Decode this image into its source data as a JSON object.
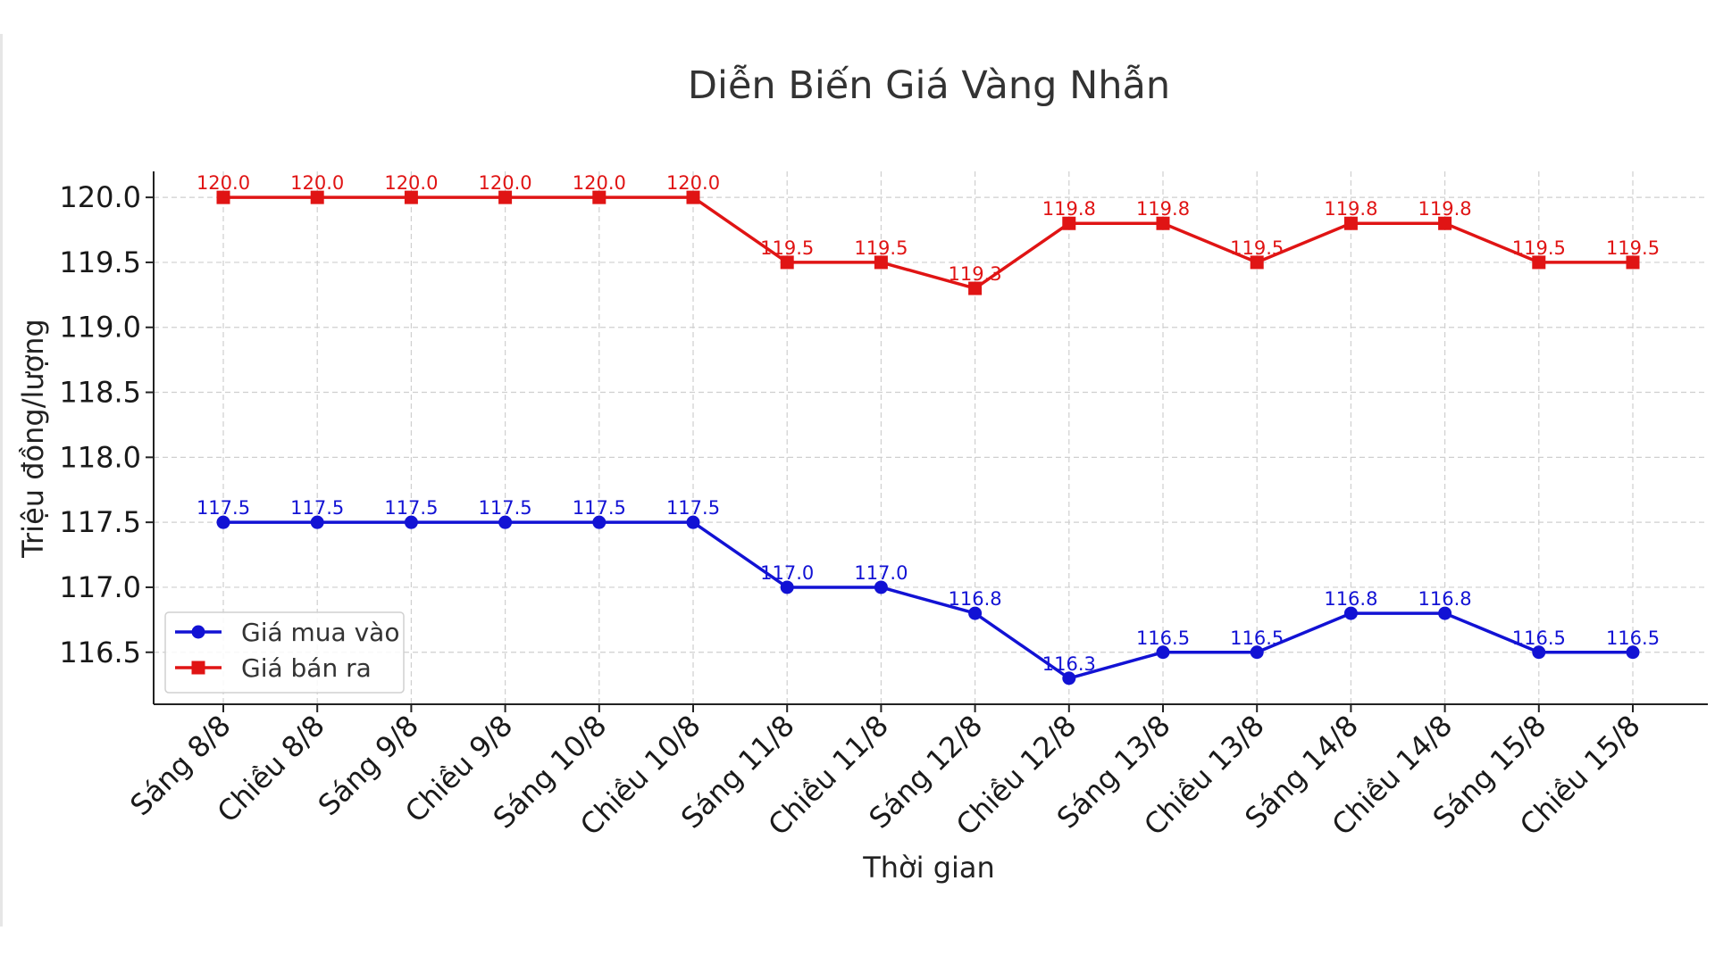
{
  "chart_data": {
    "type": "line",
    "title": "Diễn Biến Giá Vàng Nhẫn",
    "xlabel": "Thời gian",
    "ylabel": "Triệu đồng/lượng",
    "categories": [
      "Sáng 8/8",
      "Chiều 8/8",
      "Sáng 9/8",
      "Chiều 9/8",
      "Sáng 10/8",
      "Chiều 10/8",
      "Sáng 11/8",
      "Chiều 11/8",
      "Sáng 12/8",
      "Chiều 12/8",
      "Sáng 13/8",
      "Chiều 13/8",
      "Sáng 14/8",
      "Chiều 14/8",
      "Sáng 15/8",
      "Chiều 15/8"
    ],
    "series": [
      {
        "name": "Giá mua vào",
        "color": "#1212d4",
        "marker": "circle",
        "values": [
          117.5,
          117.5,
          117.5,
          117.5,
          117.5,
          117.5,
          117.0,
          117.0,
          116.8,
          116.3,
          116.5,
          116.5,
          116.8,
          116.8,
          116.5,
          116.5
        ]
      },
      {
        "name": "Giá bán ra",
        "color": "#e01414",
        "marker": "square",
        "values": [
          120.0,
          120.0,
          120.0,
          120.0,
          120.0,
          120.0,
          119.5,
          119.5,
          119.3,
          119.8,
          119.8,
          119.5,
          119.8,
          119.8,
          119.5,
          119.5
        ]
      }
    ],
    "yticks": [
      "116.5",
      "117.0",
      "117.5",
      "118.0",
      "118.5",
      "119.0",
      "119.5",
      "120.0"
    ],
    "ylim": [
      116.1,
      120.2
    ],
    "grid": true,
    "legend_position": "lower-left"
  }
}
